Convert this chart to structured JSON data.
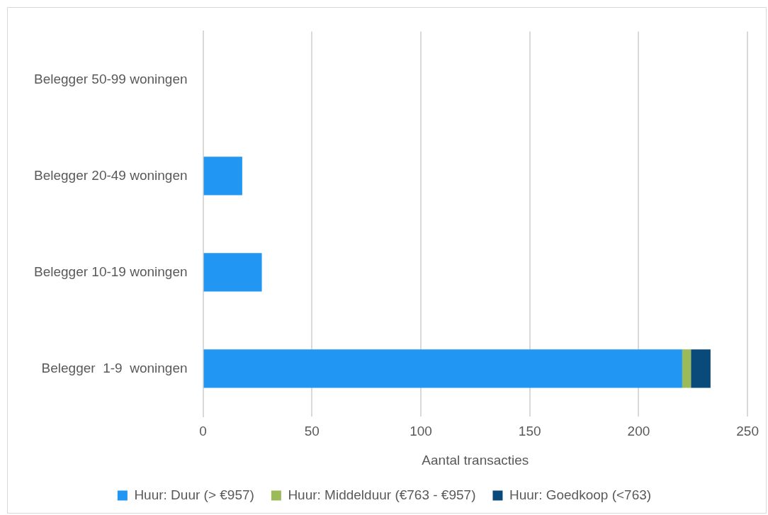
{
  "chart_data": {
    "type": "bar",
    "orientation": "horizontal",
    "stacked": true,
    "xlabel": "Aantal transacties",
    "categories": [
      "Belegger 50-99 woningen",
      "Belegger 20-49 woningen",
      "Belegger 10-19 woningen",
      "Belegger  1-9  woningen"
    ],
    "series": [
      {
        "name": "Huur: Duur (> €957)",
        "color": "#2196f3",
        "values": [
          0,
          18,
          27,
          220
        ]
      },
      {
        "name": "Huur: Middelduur (€763 - €957)",
        "color": "#9bbb59",
        "values": [
          0,
          0,
          0,
          4
        ]
      },
      {
        "name": "Huur: Goedkoop (<763)",
        "color": "#0a4a7a",
        "values": [
          0,
          0,
          0,
          9
        ]
      }
    ],
    "xlim": [
      0,
      250
    ],
    "xticks": [
      0,
      50,
      100,
      150,
      200,
      250
    ],
    "grid": "x",
    "legend": "bottom"
  }
}
